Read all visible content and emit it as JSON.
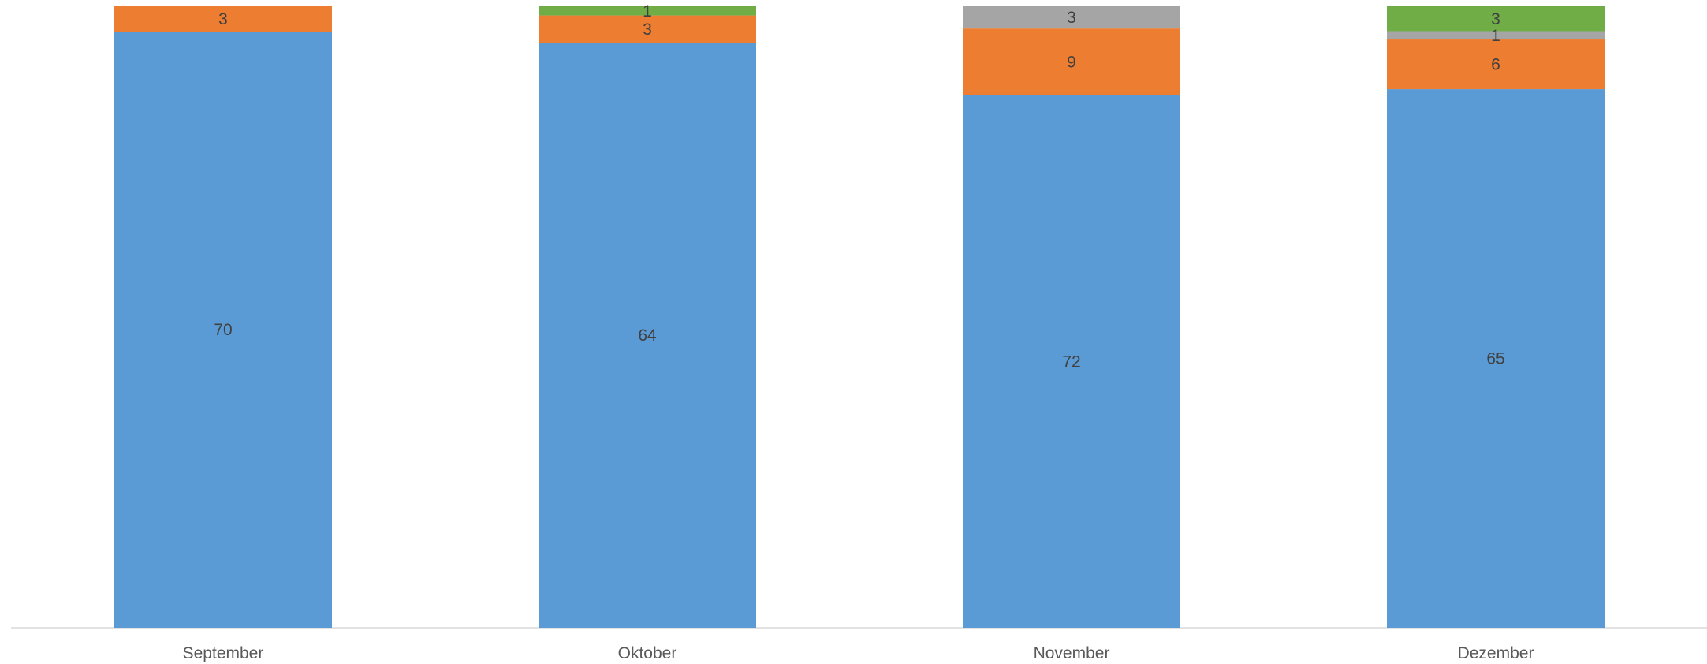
{
  "chart_data": {
    "type": "bar",
    "stacked": "percent",
    "categories": [
      "September",
      "Oktober",
      "November",
      "Dezember"
    ],
    "series": [
      {
        "values": [
          70,
          64,
          72,
          65
        ],
        "color": "#5B9BD5"
      },
      {
        "values": [
          3,
          3,
          9,
          6
        ],
        "color": "#ED7D31"
      },
      {
        "values": [
          0,
          0,
          3,
          1
        ],
        "color": "#A5A5A5"
      },
      {
        "values": [
          0,
          1,
          0,
          3
        ],
        "color": "#70AD47"
      }
    ],
    "title": "",
    "xlabel": "",
    "ylabel": "",
    "grid": false,
    "legend": "none"
  }
}
